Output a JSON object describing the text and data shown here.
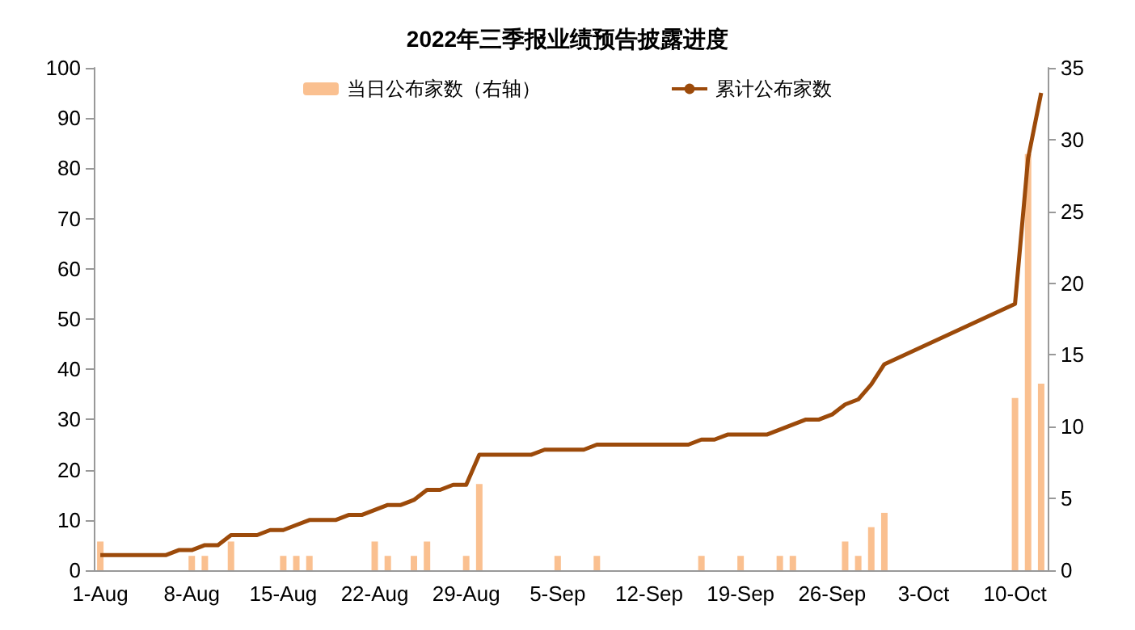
{
  "chart_data": {
    "type": "bar",
    "title": "2022年三季报业绩预告披露进度",
    "categories": [
      "1-Aug",
      null,
      null,
      null,
      null,
      null,
      null,
      "8-Aug",
      null,
      null,
      null,
      null,
      null,
      null,
      "15-Aug",
      null,
      null,
      null,
      null,
      null,
      null,
      "22-Aug",
      null,
      null,
      null,
      null,
      null,
      null,
      "29-Aug",
      null,
      null,
      null,
      null,
      null,
      null,
      "5-Sep",
      null,
      null,
      null,
      null,
      null,
      null,
      "12-Sep",
      null,
      null,
      null,
      null,
      null,
      null,
      "19-Sep",
      null,
      null,
      null,
      null,
      null,
      null,
      "26-Sep",
      null,
      null,
      null,
      null,
      null,
      null,
      "3-Oct",
      null,
      null,
      null,
      null,
      null,
      null,
      "10-Oct",
      null,
      null
    ],
    "series": [
      {
        "name": "当日公布家数（右轴）",
        "axis": "y2",
        "color": "#fac090",
        "values": [
          2,
          null,
          null,
          null,
          null,
          null,
          null,
          1,
          1,
          null,
          2,
          null,
          null,
          null,
          1,
          1,
          1,
          null,
          null,
          null,
          null,
          2,
          1,
          null,
          1,
          2,
          null,
          null,
          1,
          6,
          null,
          null,
          null,
          null,
          null,
          1,
          null,
          null,
          1,
          null,
          null,
          null,
          null,
          null,
          null,
          null,
          1,
          null,
          null,
          1,
          null,
          null,
          1,
          1,
          null,
          null,
          null,
          2,
          1,
          3,
          4,
          null,
          null,
          null,
          null,
          null,
          null,
          null,
          null,
          null,
          12,
          29,
          13
        ]
      },
      {
        "name": "累计公布家数",
        "type": "line",
        "color": "#9c4a0a",
        "values": [
          3,
          3,
          3,
          3,
          3,
          3,
          4,
          4,
          5,
          5,
          7,
          7,
          7,
          8,
          8,
          9,
          10,
          10,
          10,
          11,
          11,
          12,
          13,
          13,
          14,
          16,
          16,
          17,
          17,
          23,
          23,
          23,
          23,
          23,
          24,
          24,
          24,
          24,
          25,
          25,
          25,
          25,
          25,
          25,
          25,
          25,
          26,
          26,
          27,
          27,
          27,
          27,
          28,
          29,
          30,
          30,
          31,
          33,
          34,
          37,
          41,
          null,
          null,
          null,
          null,
          null,
          null,
          null,
          null,
          null,
          53,
          82,
          95
        ]
      }
    ],
    "ylim": [
      0,
      100
    ],
    "yticks": [
      0,
      10,
      20,
      30,
      40,
      50,
      60,
      70,
      80,
      90,
      100
    ],
    "y2lim": [
      0,
      35
    ],
    "y2ticks": [
      0,
      5,
      10,
      15,
      20,
      25,
      30,
      35
    ],
    "legend": "top",
    "grid": false,
    "marker": "none",
    "line_style": "solid"
  }
}
